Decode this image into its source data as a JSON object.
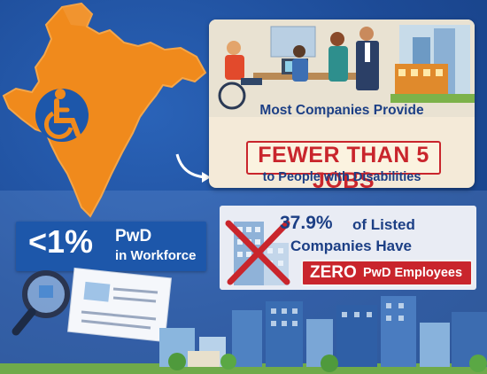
{
  "colors": {
    "background": "#1f4f9c",
    "india_map": "#f08a1c",
    "accent_red": "#c9252c",
    "title_blue": "#1c3f85",
    "badge_blue": "#1d57aa"
  },
  "icons": {
    "map": "india-map-icon",
    "wheelchair": "wheelchair-icon",
    "magnifier": "magnifying-glass-icon",
    "document": "resume-document-icon",
    "crossed_building": "crossed-building-icon",
    "arrow": "curved-arrow-icon"
  },
  "top_card": {
    "line1": "Most Companies Provide",
    "line2": "FEWER THAN 5 JOBS",
    "line3": "to People with Disabilities"
  },
  "pwd_stat": {
    "value": "<1%",
    "label": "PwD",
    "sublabel": "in Workforce"
  },
  "listed_stat": {
    "value": "37.9%",
    "line1_rest": "of Listed",
    "line2": "Companies Have",
    "zero": "ZERO",
    "zero_rest": "PwD Employees"
  }
}
